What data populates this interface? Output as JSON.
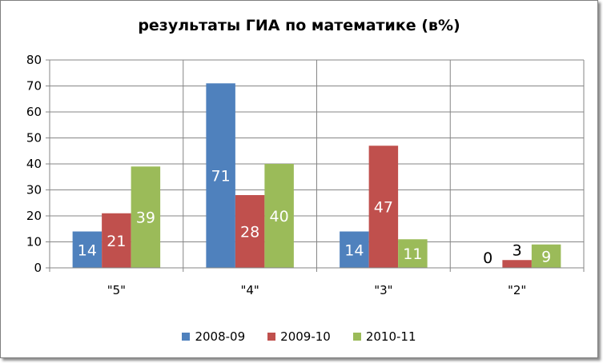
{
  "chart_data": {
    "type": "bar",
    "title": "результаты ГИА по математике (в%)",
    "categories": [
      "\"5\"",
      "\"4\"",
      "\"3\"",
      "\"2\""
    ],
    "series": [
      {
        "name": "2008-09",
        "color": "#4F81BD",
        "values": [
          14,
          71,
          14,
          0
        ]
      },
      {
        "name": "2009-10",
        "color": "#C0504D",
        "values": [
          21,
          28,
          47,
          3
        ]
      },
      {
        "name": "2010-11",
        "color": "#9BBB59",
        "values": [
          39,
          40,
          11,
          9
        ]
      }
    ],
    "ylim": [
      0,
      80
    ],
    "yticks": [
      "0",
      "10",
      "20",
      "30",
      "40",
      "50",
      "60",
      "70",
      "80"
    ],
    "grid": true,
    "legend_position": "bottom"
  }
}
